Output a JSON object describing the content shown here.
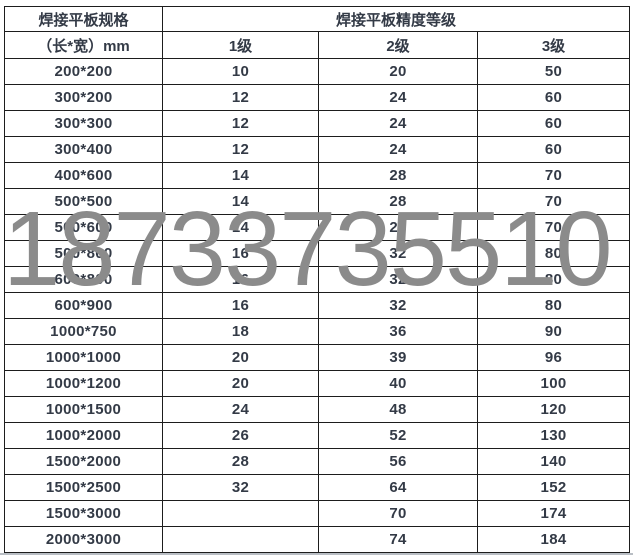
{
  "chart_data": {
    "type": "table",
    "title_col1": "焊接平板规格",
    "title_grades": "焊接平板精度等级",
    "subtitle_col1": "（长*宽）mm",
    "grade_labels": [
      "1级",
      "2级",
      "3级"
    ],
    "rows": [
      [
        "200*200",
        "10",
        "20",
        "50"
      ],
      [
        "300*200",
        "12",
        "24",
        "60"
      ],
      [
        "300*300",
        "12",
        "24",
        "60"
      ],
      [
        "300*400",
        "12",
        "24",
        "60"
      ],
      [
        "400*600",
        "14",
        "28",
        "70"
      ],
      [
        "500*500",
        "14",
        "28",
        "70"
      ],
      [
        "500*600",
        "14",
        "28",
        "70"
      ],
      [
        "500*800",
        "16",
        "32",
        "80"
      ],
      [
        "600*800",
        "16",
        "32",
        "80"
      ],
      [
        "600*900",
        "16",
        "32",
        "80"
      ],
      [
        "1000*750",
        "18",
        "36",
        "90"
      ],
      [
        "1000*1000",
        "20",
        "39",
        "96"
      ],
      [
        "1000*1200",
        "20",
        "40",
        "100"
      ],
      [
        "1000*1500",
        "24",
        "48",
        "120"
      ],
      [
        "1000*2000",
        "26",
        "52",
        "130"
      ],
      [
        "1500*2000",
        "28",
        "56",
        "140"
      ],
      [
        "1500*2500",
        "32",
        "64",
        "152"
      ],
      [
        "1500*3000",
        "",
        "70",
        "174"
      ],
      [
        "2000*3000",
        "",
        "74",
        "184"
      ]
    ]
  },
  "watermark": {
    "text": "18733735510"
  },
  "colors": {
    "table_text": "#333a46",
    "table_border": "#1d1d1d",
    "watermark": "#8b8b8b",
    "bottom_line": "#b9bec4"
  }
}
